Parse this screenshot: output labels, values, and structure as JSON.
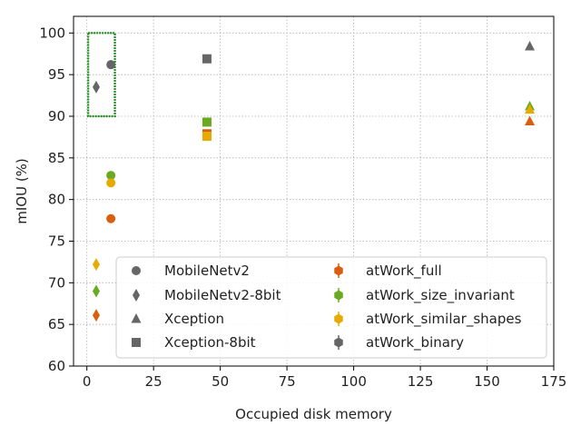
{
  "chart_data": {
    "type": "scatter",
    "xlabel": "Occupied disk memory",
    "ylabel": "mIOU (%)",
    "xlim": [
      -5,
      175
    ],
    "ylim": [
      60,
      102
    ],
    "xticks": [
      0,
      25,
      50,
      75,
      100,
      125,
      150,
      175
    ],
    "yticks": [
      60,
      65,
      70,
      75,
      80,
      85,
      90,
      95,
      100
    ],
    "grid": true,
    "legend_placement": "lower-right",
    "legend_columns": 2,
    "colors": {
      "atWork_full": "#d95f0e",
      "atWork_size_invariant": "#6aaa20",
      "atWork_similar_shapes": "#e6ab02",
      "atWork_binary": "#666666",
      "highlight_box": "#1a8a1a"
    },
    "model_legend": [
      {
        "name": "MobileNetv2",
        "marker": "circle"
      },
      {
        "name": "MobileNetv2-8bit",
        "marker": "diamond"
      },
      {
        "name": "Xception",
        "marker": "triangle"
      },
      {
        "name": "Xception-8bit",
        "marker": "square"
      }
    ],
    "dataset_legend": [
      {
        "name": "atWork_full",
        "color_key": "atWork_full"
      },
      {
        "name": "atWork_size_invariant",
        "color_key": "atWork_size_invariant"
      },
      {
        "name": "atWork_similar_shapes",
        "color_key": "atWork_similar_shapes"
      },
      {
        "name": "atWork_binary",
        "color_key": "atWork_binary"
      }
    ],
    "points": [
      {
        "model": "MobileNetv2",
        "dataset": "atWork_binary",
        "x": 9,
        "y": 96.2
      },
      {
        "model": "MobileNetv2",
        "dataset": "atWork_size_invariant",
        "x": 9,
        "y": 82.9
      },
      {
        "model": "MobileNetv2",
        "dataset": "atWork_similar_shapes",
        "x": 9,
        "y": 82.0
      },
      {
        "model": "MobileNetv2",
        "dataset": "atWork_full",
        "x": 9,
        "y": 77.7
      },
      {
        "model": "MobileNetv2-8bit",
        "dataset": "atWork_binary",
        "x": 3.5,
        "y": 93.5
      },
      {
        "model": "MobileNetv2-8bit",
        "dataset": "atWork_similar_shapes",
        "x": 3.5,
        "y": 72.2
      },
      {
        "model": "MobileNetv2-8bit",
        "dataset": "atWork_size_invariant",
        "x": 3.5,
        "y": 69.0
      },
      {
        "model": "MobileNetv2-8bit",
        "dataset": "atWork_full",
        "x": 3.5,
        "y": 66.1
      },
      {
        "model": "Xception",
        "dataset": "atWork_binary",
        "x": 166,
        "y": 98.4
      },
      {
        "model": "Xception",
        "dataset": "atWork_size_invariant",
        "x": 166,
        "y": 91.2
      },
      {
        "model": "Xception",
        "dataset": "atWork_similar_shapes",
        "x": 166,
        "y": 90.8
      },
      {
        "model": "Xception",
        "dataset": "atWork_full",
        "x": 166,
        "y": 89.4
      },
      {
        "model": "Xception-8bit",
        "dataset": "atWork_binary",
        "x": 45,
        "y": 96.9
      },
      {
        "model": "Xception-8bit",
        "dataset": "atWork_size_invariant",
        "x": 45,
        "y": 89.3
      },
      {
        "model": "Xception-8bit",
        "dataset": "atWork_full",
        "x": 45,
        "y": 87.9
      },
      {
        "model": "Xception-8bit",
        "dataset": "atWork_similar_shapes",
        "x": 45,
        "y": 87.6
      }
    ],
    "highlight_region": {
      "x": [
        0.5,
        10.5
      ],
      "y": [
        90,
        100
      ]
    }
  }
}
